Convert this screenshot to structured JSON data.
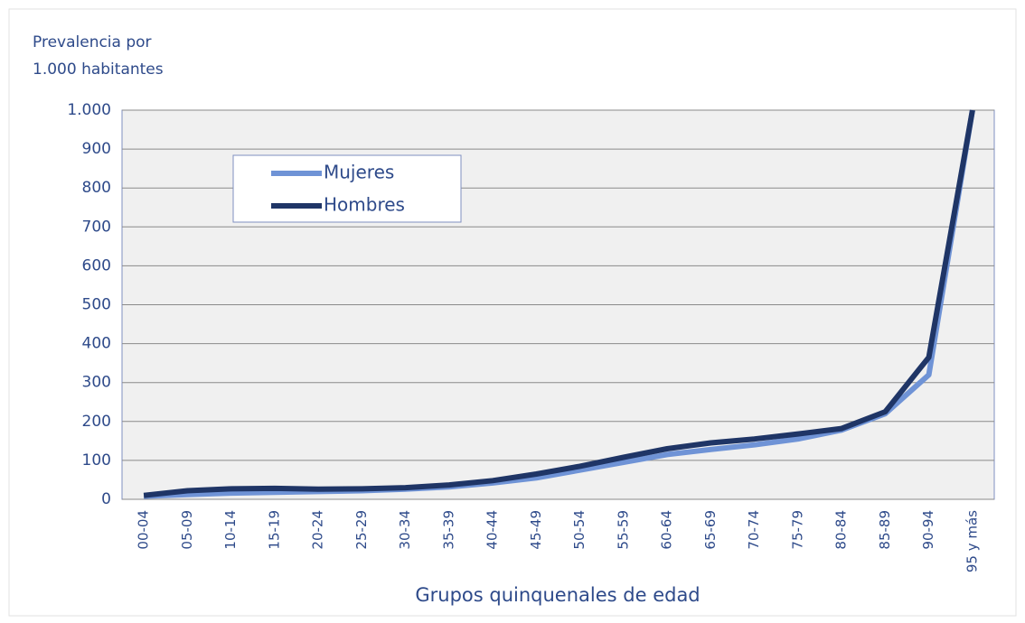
{
  "chart_data": {
    "type": "line",
    "ylabel": [
      "Prevalencia por",
      "1.000 habitantes"
    ],
    "xlabel": "Grupos quinquenales de edad",
    "categories": [
      "00-04",
      "05-09",
      "10-14",
      "15-19",
      "20-24",
      "25-29",
      "30-34",
      "35-39",
      "40-44",
      "45-49",
      "50-54",
      "55-59",
      "60-64",
      "65-69",
      "70-74",
      "75-79",
      "80-84",
      "85-89",
      "90-94",
      "95 y más"
    ],
    "series": [
      {
        "name": "Mujeres",
        "color": "#6f93d6",
        "values": [
          8,
          12,
          16,
          18,
          20,
          22,
          26,
          32,
          42,
          55,
          75,
          95,
          115,
          128,
          140,
          155,
          178,
          220,
          320,
          1000
        ]
      },
      {
        "name": "Hombres",
        "color": "#1f3566",
        "values": [
          10,
          22,
          27,
          28,
          26,
          27,
          30,
          37,
          48,
          65,
          85,
          108,
          130,
          145,
          155,
          168,
          182,
          225,
          365,
          1000
        ]
      }
    ],
    "ylim": [
      0,
      1000
    ],
    "yticks": [
      0,
      100,
      200,
      300,
      400,
      500,
      600,
      700,
      800,
      900,
      {
        "value": 1000,
        "label": "1.000"
      }
    ],
    "grid": true,
    "legend": "upper-left"
  }
}
